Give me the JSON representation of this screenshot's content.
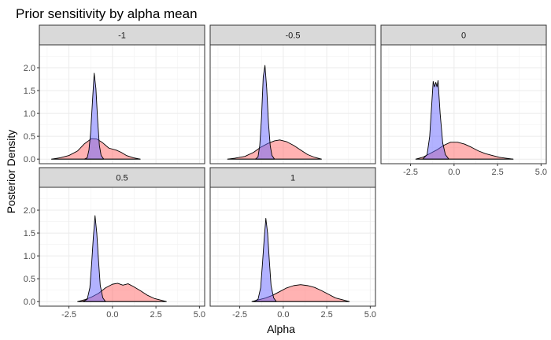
{
  "chart_data": {
    "type": "area",
    "title": "Prior sensitivity by alpha mean",
    "xlabel": "Alpha",
    "ylabel": "Posterior Density",
    "xlim": [
      -4.2,
      5.3
    ],
    "ylim": [
      -0.1,
      2.5
    ],
    "x_ticks": [
      -2.5,
      0.0,
      2.5,
      5.0
    ],
    "x_tick_labels": [
      "-2.5",
      "0.0",
      "2.5",
      "5.0"
    ],
    "y_ticks": [
      0.0,
      0.5,
      1.0,
      1.5,
      2.0
    ],
    "y_tick_labels": [
      "0.0",
      "0.5",
      "1.0",
      "1.5",
      "2.0"
    ],
    "grid": true,
    "colors": {
      "blue_fill": "#6666ff",
      "red_fill": "#ff6666",
      "strip_fill": "#d9d9d9",
      "grid": "#ebebeb",
      "border": "#333333"
    },
    "panels": [
      {
        "label": "-1",
        "series": [
          {
            "color": "#6666ff",
            "points": [
              [
                -1.6,
                0
              ],
              [
                -1.45,
                0.03
              ],
              [
                -1.35,
                0.2
              ],
              [
                -1.25,
                0.6
              ],
              [
                -1.15,
                1.25
              ],
              [
                -1.05,
                1.88
              ],
              [
                -0.95,
                1.55
              ],
              [
                -0.85,
                0.85
              ],
              [
                -0.75,
                0.3
              ],
              [
                -0.65,
                0.08
              ],
              [
                -0.5,
                0
              ]
            ]
          },
          {
            "color": "#ff6666",
            "points": [
              [
                -3.5,
                0
              ],
              [
                -3.0,
                0.03
              ],
              [
                -2.5,
                0.08
              ],
              [
                -2.0,
                0.18
              ],
              [
                -1.6,
                0.34
              ],
              [
                -1.2,
                0.45
              ],
              [
                -0.9,
                0.44
              ],
              [
                -0.6,
                0.37
              ],
              [
                -0.2,
                0.24
              ],
              [
                0.2,
                0.2
              ],
              [
                0.5,
                0.15
              ],
              [
                0.8,
                0.08
              ],
              [
                1.2,
                0.03
              ],
              [
                1.6,
                0
              ]
            ]
          }
        ]
      },
      {
        "label": "-0.5",
        "series": [
          {
            "color": "#6666ff",
            "points": [
              [
                -1.6,
                0
              ],
              [
                -1.45,
                0.05
              ],
              [
                -1.35,
                0.3
              ],
              [
                -1.25,
                0.9
              ],
              [
                -1.15,
                1.8
              ],
              [
                -1.05,
                2.05
              ],
              [
                -0.95,
                1.55
              ],
              [
                -0.85,
                0.8
              ],
              [
                -0.75,
                0.3
              ],
              [
                -0.65,
                0.08
              ],
              [
                -0.5,
                0
              ]
            ]
          },
          {
            "color": "#ff6666",
            "points": [
              [
                -3.2,
                0
              ],
              [
                -2.8,
                0.02
              ],
              [
                -2.2,
                0.06
              ],
              [
                -1.7,
                0.15
              ],
              [
                -1.3,
                0.26
              ],
              [
                -0.9,
                0.34
              ],
              [
                -0.5,
                0.4
              ],
              [
                -0.2,
                0.42
              ],
              [
                0.2,
                0.38
              ],
              [
                0.6,
                0.3
              ],
              [
                1.0,
                0.2
              ],
              [
                1.4,
                0.1
              ],
              [
                1.8,
                0.04
              ],
              [
                2.2,
                0
              ]
            ]
          }
        ]
      },
      {
        "label": "0",
        "series": [
          {
            "color": "#6666ff",
            "points": [
              [
                -1.8,
                0
              ],
              [
                -1.55,
                0.1
              ],
              [
                -1.4,
                0.5
              ],
              [
                -1.3,
                1.1
              ],
              [
                -1.2,
                1.7
              ],
              [
                -1.12,
                1.58
              ],
              [
                -1.05,
                1.68
              ],
              [
                -0.98,
                1.58
              ],
              [
                -0.92,
                1.72
              ],
              [
                -0.8,
                1.0
              ],
              [
                -0.65,
                0.35
              ],
              [
                -0.5,
                0.1
              ],
              [
                -0.3,
                0
              ]
            ]
          },
          {
            "color": "#ff6666",
            "points": [
              [
                -2.2,
                0
              ],
              [
                -1.8,
                0.04
              ],
              [
                -1.4,
                0.12
              ],
              [
                -1.0,
                0.2
              ],
              [
                -0.6,
                0.3
              ],
              [
                -0.2,
                0.37
              ],
              [
                0.2,
                0.37
              ],
              [
                0.6,
                0.33
              ],
              [
                1.0,
                0.26
              ],
              [
                1.4,
                0.18
              ],
              [
                1.8,
                0.12
              ],
              [
                2.2,
                0.08
              ],
              [
                2.6,
                0.04
              ],
              [
                3.0,
                0.02
              ],
              [
                3.4,
                0
              ]
            ]
          }
        ]
      },
      {
        "label": "0.5",
        "series": [
          {
            "color": "#6666ff",
            "points": [
              [
                -1.7,
                0
              ],
              [
                -1.45,
                0.05
              ],
              [
                -1.3,
                0.3
              ],
              [
                -1.2,
                0.8
              ],
              [
                -1.1,
                1.4
              ],
              [
                -1.0,
                1.88
              ],
              [
                -0.9,
                1.5
              ],
              [
                -0.8,
                0.9
              ],
              [
                -0.7,
                0.35
              ],
              [
                -0.55,
                0.08
              ],
              [
                -0.4,
                0
              ]
            ]
          },
          {
            "color": "#ff6666",
            "points": [
              [
                -2.0,
                0
              ],
              [
                -1.6,
                0.04
              ],
              [
                -1.2,
                0.1
              ],
              [
                -0.8,
                0.18
              ],
              [
                -0.4,
                0.3
              ],
              [
                0.0,
                0.38
              ],
              [
                0.3,
                0.4
              ],
              [
                0.6,
                0.36
              ],
              [
                0.9,
                0.39
              ],
              [
                1.2,
                0.33
              ],
              [
                1.6,
                0.24
              ],
              [
                2.0,
                0.14
              ],
              [
                2.4,
                0.07
              ],
              [
                2.8,
                0.03
              ],
              [
                3.1,
                0
              ]
            ]
          }
        ]
      },
      {
        "label": "1",
        "series": [
          {
            "color": "#6666ff",
            "points": [
              [
                -1.7,
                0
              ],
              [
                -1.45,
                0.05
              ],
              [
                -1.3,
                0.3
              ],
              [
                -1.2,
                0.8
              ],
              [
                -1.1,
                1.35
              ],
              [
                -1.0,
                1.82
              ],
              [
                -0.9,
                1.5
              ],
              [
                -0.8,
                0.9
              ],
              [
                -0.7,
                0.35
              ],
              [
                -0.55,
                0.08
              ],
              [
                -0.4,
                0
              ]
            ]
          },
          {
            "color": "#ff6666",
            "points": [
              [
                -1.8,
                0
              ],
              [
                -1.4,
                0.04
              ],
              [
                -1.0,
                0.08
              ],
              [
                -0.6,
                0.14
              ],
              [
                -0.2,
                0.22
              ],
              [
                0.2,
                0.3
              ],
              [
                0.6,
                0.35
              ],
              [
                1.0,
                0.37
              ],
              [
                1.4,
                0.35
              ],
              [
                1.8,
                0.31
              ],
              [
                2.2,
                0.24
              ],
              [
                2.6,
                0.16
              ],
              [
                3.0,
                0.08
              ],
              [
                3.4,
                0.04
              ],
              [
                3.8,
                0
              ]
            ]
          }
        ]
      }
    ]
  }
}
